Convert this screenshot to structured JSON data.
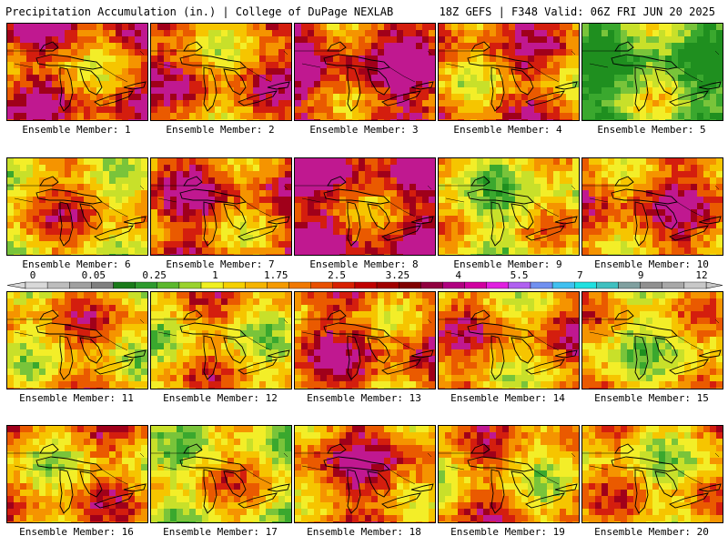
{
  "header": {
    "title": "Precipitation Accumulation (in.) | College of DuPage NEXLAB",
    "run": "18Z GEFS | F348 Valid: 06Z FRI JUN 20 2025"
  },
  "members": [
    {
      "label": "Ensemble Member: 1",
      "wetness": 0.75
    },
    {
      "label": "Ensemble Member: 2",
      "wetness": 0.7
    },
    {
      "label": "Ensemble Member: 3",
      "wetness": 0.85
    },
    {
      "label": "Ensemble Member: 4",
      "wetness": 0.7
    },
    {
      "label": "Ensemble Member: 5",
      "wetness": 0.2
    },
    {
      "label": "Ensemble Member: 6",
      "wetness": 0.6
    },
    {
      "label": "Ensemble Member: 7",
      "wetness": 0.75
    },
    {
      "label": "Ensemble Member: 8",
      "wetness": 0.85
    },
    {
      "label": "Ensemble Member: 9",
      "wetness": 0.45
    },
    {
      "label": "Ensemble Member: 10",
      "wetness": 0.75
    },
    {
      "label": "Ensemble Member: 11",
      "wetness": 0.6
    },
    {
      "label": "Ensemble Member: 12",
      "wetness": 0.55
    },
    {
      "label": "Ensemble Member: 13",
      "wetness": 0.75
    },
    {
      "label": "Ensemble Member: 14",
      "wetness": 0.65
    },
    {
      "label": "Ensemble Member: 15",
      "wetness": 0.5
    },
    {
      "label": "Ensemble Member: 16",
      "wetness": 0.6
    },
    {
      "label": "Ensemble Member: 17",
      "wetness": 0.5
    },
    {
      "label": "Ensemble Member: 18",
      "wetness": 0.75
    },
    {
      "label": "Ensemble Member: 19",
      "wetness": 0.6
    },
    {
      "label": "Ensemble Member: 20",
      "wetness": 0.55
    }
  ],
  "colorbar": {
    "tick_labels": [
      "0",
      "0.05",
      "0.25",
      "1",
      "1.75",
      "2.5",
      "3.25",
      "4",
      "5.5",
      "7",
      "9",
      "12"
    ],
    "colors": [
      "#d9d9d9",
      "#bdbdbd",
      "#a0a0a0",
      "#7f7f7f",
      "#1a7a1a",
      "#2e9a2e",
      "#5cb82e",
      "#9ad22e",
      "#f0f020",
      "#f5d000",
      "#f5b400",
      "#f59a00",
      "#f07800",
      "#e85000",
      "#d82000",
      "#c00000",
      "#a00000",
      "#800000",
      "#900040",
      "#b00080",
      "#d000a0",
      "#e020e0",
      "#b060f0",
      "#7090f0",
      "#40c0f0",
      "#20e0e0",
      "#40c0c0",
      "#80a0a0",
      "#909090",
      "#a8a8a8",
      "#c8c8c8"
    ]
  }
}
